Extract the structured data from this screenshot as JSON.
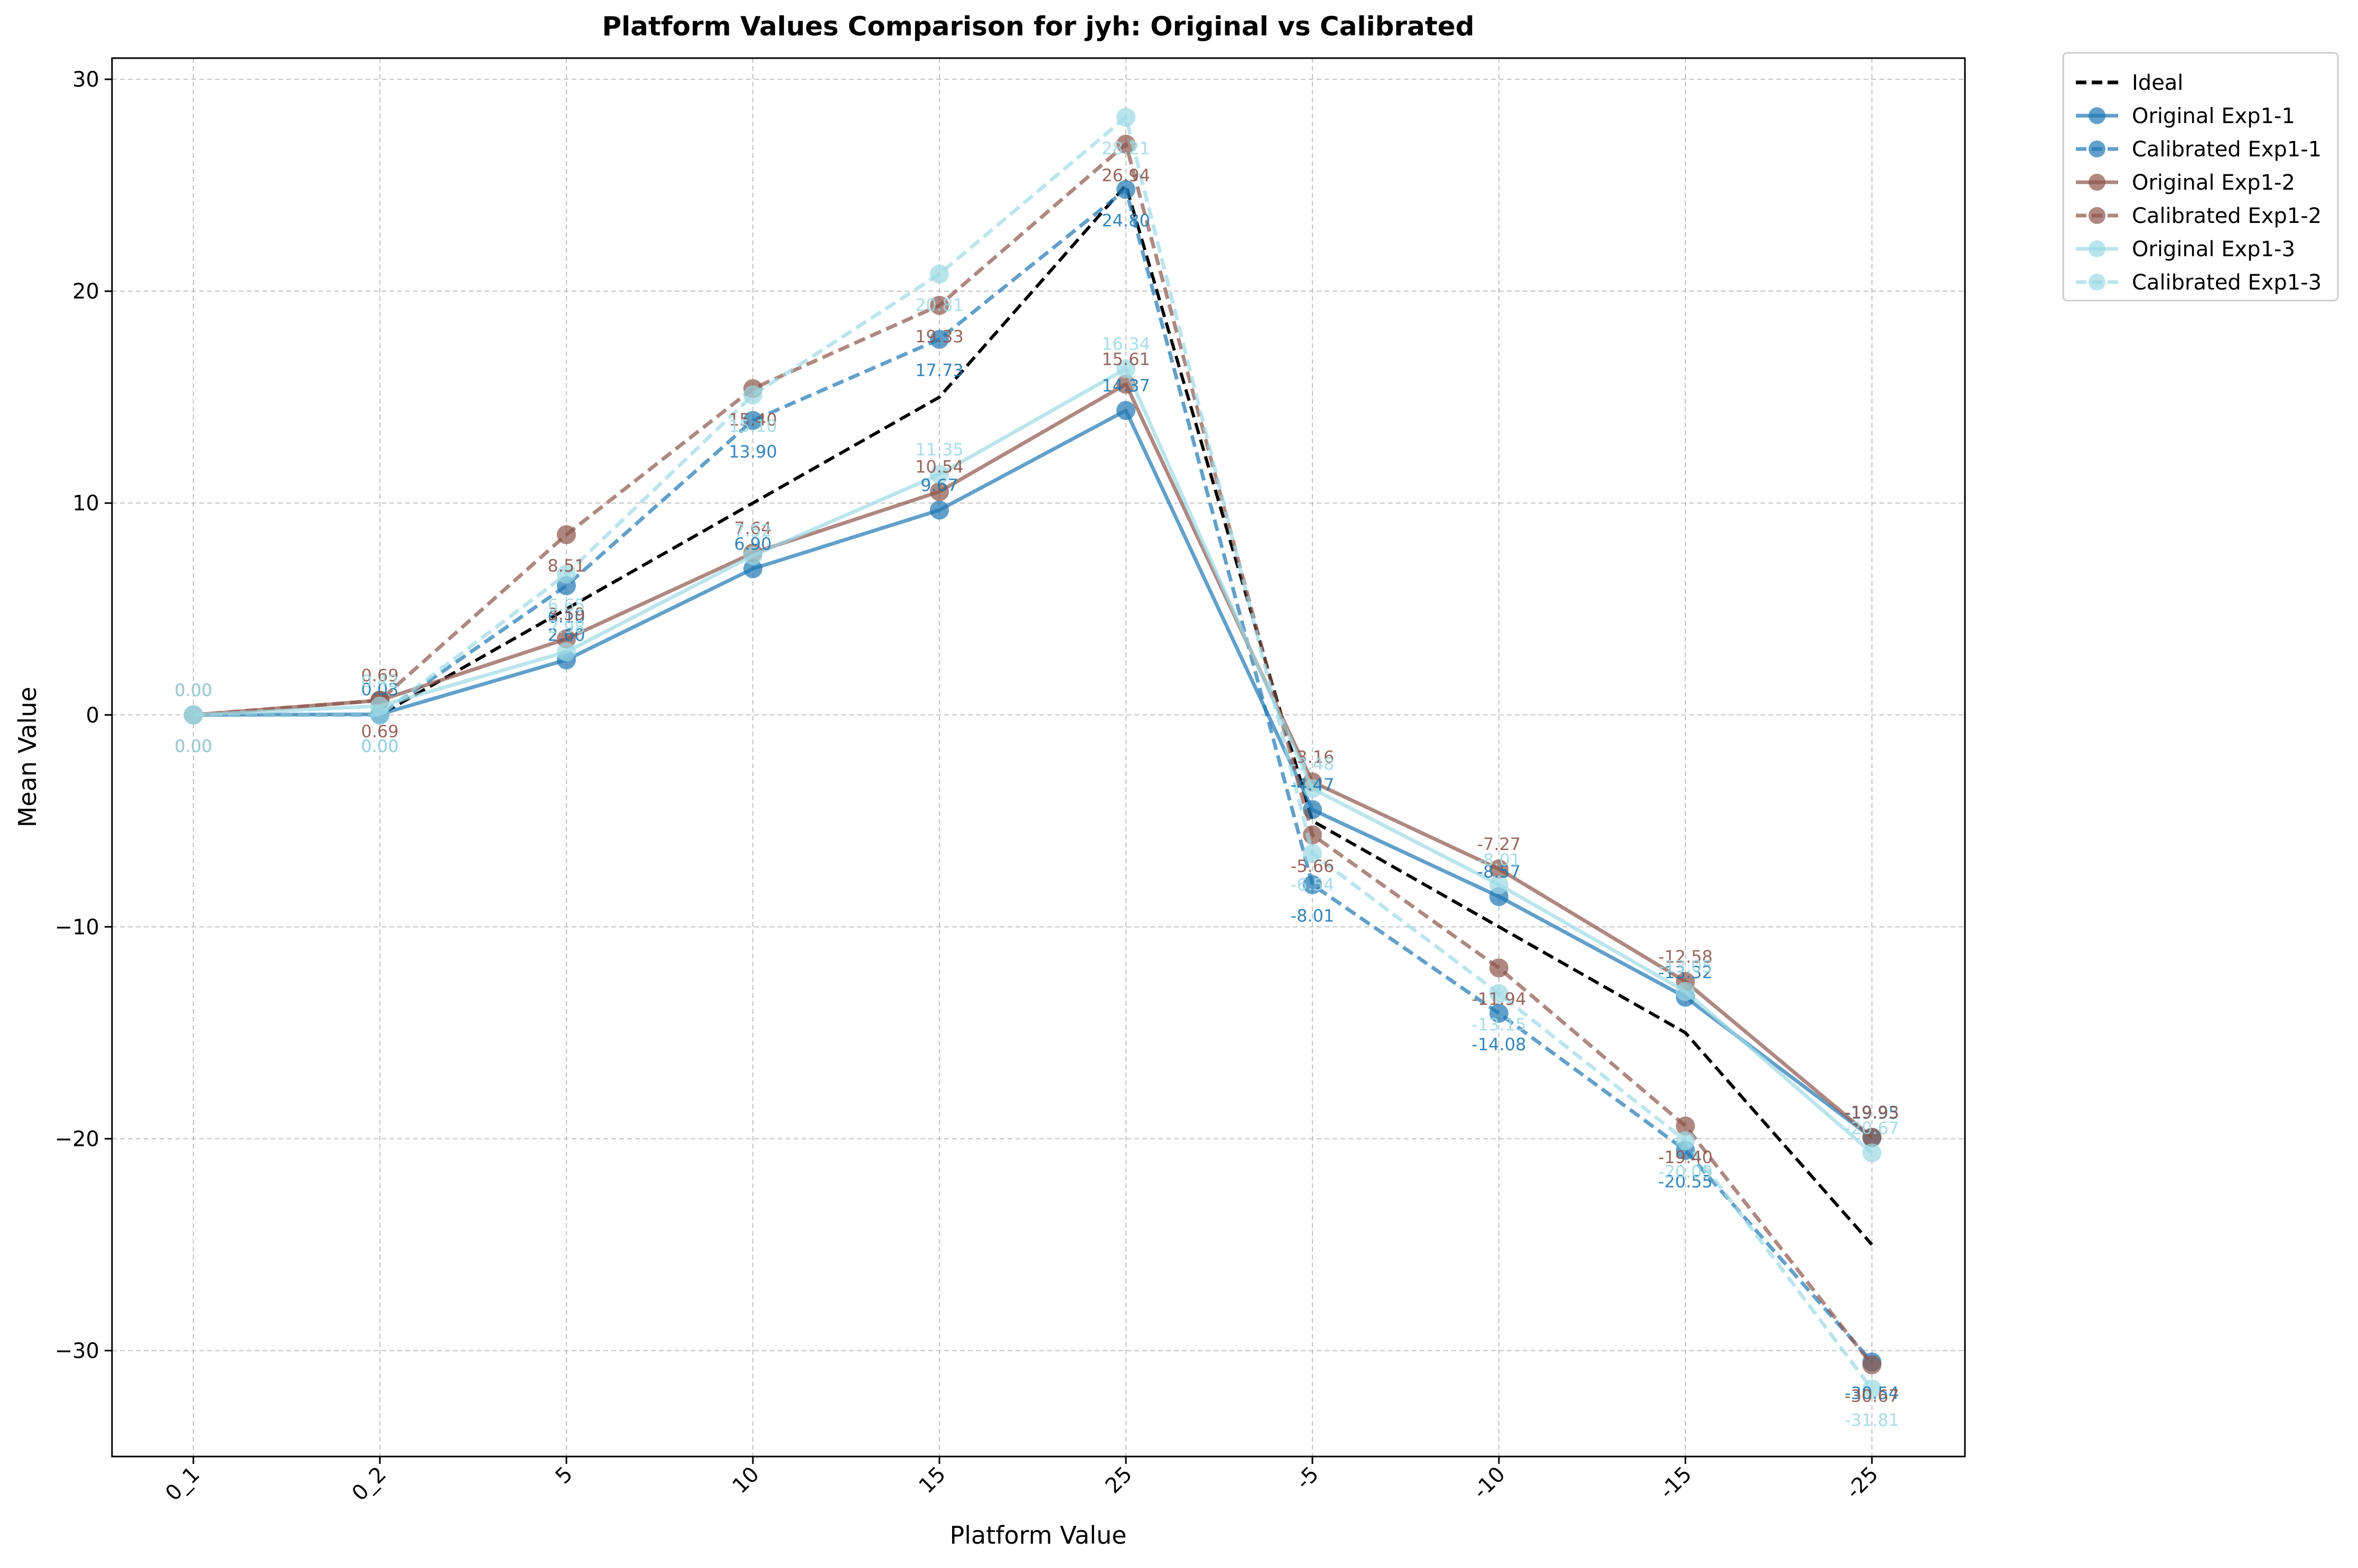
{
  "chart_data": {
    "type": "line",
    "title": "Platform Values Comparison for jyh: Original vs Calibrated",
    "xlabel": "Platform Value",
    "ylabel": "Mean Value",
    "categories": [
      "0_1",
      "0_2",
      "5",
      "10",
      "15",
      "25",
      "-5",
      "-10",
      "-15",
      "-25"
    ],
    "ylim": [
      -35,
      31
    ],
    "yticks": [
      30,
      20,
      10,
      0,
      -10,
      -20,
      -30
    ],
    "ytick_labels": [
      "30",
      "20",
      "10",
      "0",
      "−10",
      "−20",
      "−30"
    ],
    "grid": true,
    "legend_position": "outside-top-right",
    "series": [
      {
        "name": "Ideal",
        "color": "#000000",
        "dashed": true,
        "markers": false,
        "values": [
          0,
          0,
          5,
          10,
          15,
          25,
          -5,
          -10,
          -15,
          -25
        ]
      },
      {
        "name": "Original Exp1-1",
        "color": "#1f77b4",
        "dashed": false,
        "markers": true,
        "values": [
          0.0,
          0.03,
          2.6,
          6.9,
          9.67,
          14.37,
          -4.47,
          -8.57,
          -13.32,
          -19.95
        ],
        "labels": [
          "0.00",
          "0.03",
          "2.60",
          "6.90",
          "9.67",
          "14.37",
          "-4.47",
          "-8.57",
          "-13.32",
          "-19.95"
        ]
      },
      {
        "name": "Calibrated Exp1-1",
        "color": "#1f77b4",
        "dashed": true,
        "markers": true,
        "values": [
          0.0,
          0.0,
          6.1,
          13.9,
          17.73,
          24.8,
          -8.01,
          -14.08,
          -20.55,
          -30.54
        ],
        "labels": [
          "0.00",
          "0.00",
          "6.10",
          "13.90",
          "17.73",
          "24.80",
          "-8.01",
          "-14.08",
          "-20.55",
          "-30.54"
        ]
      },
      {
        "name": "Original Exp1-2",
        "color": "#8c564b",
        "dashed": false,
        "markers": true,
        "values": [
          0.0,
          0.69,
          3.59,
          7.64,
          10.54,
          15.61,
          -3.16,
          -7.27,
          -12.58,
          -19.93
        ],
        "labels": [
          "0.00",
          "0.69",
          "3.59",
          "7.64",
          "10.54",
          "15.61",
          "-3.16",
          "-7.27",
          "-12.58",
          "-19.93"
        ]
      },
      {
        "name": "Calibrated Exp1-2",
        "color": "#8c564b",
        "dashed": true,
        "markers": true,
        "values": [
          0.0,
          0.69,
          8.51,
          15.4,
          19.33,
          26.94,
          -5.66,
          -11.94,
          -19.4,
          -30.67
        ],
        "labels": [
          "0.00",
          "0.69",
          "8.51",
          "15.40",
          "19.33",
          "26.94",
          "-5.66",
          "-11.94",
          "-19.40",
          "-30.67"
        ]
      },
      {
        "name": "Original Exp1-3",
        "color": "#9edae5",
        "dashed": false,
        "markers": true,
        "values": [
          0.0,
          0.42,
          2.98,
          7.52,
          11.35,
          16.34,
          -3.48,
          -8.01,
          -13.05,
          -20.67
        ],
        "labels": [
          "0.00",
          "0.42",
          "2.98",
          "7.52",
          "11.35",
          "16.34",
          "-3.48",
          "-8.01",
          "-13.05",
          "-20.67"
        ]
      },
      {
        "name": "Calibrated Exp1-3",
        "color": "#9edae5",
        "dashed": true,
        "markers": true,
        "values": [
          0.0,
          0.0,
          6.65,
          15.1,
          20.81,
          28.21,
          -6.54,
          -13.15,
          -20.09,
          -31.81
        ],
        "labels": [
          "0.00",
          "0.00",
          "6.65",
          "15.10",
          "20.81",
          "28.21",
          "-6.54",
          "-13.15",
          "-20.09",
          "-31.81"
        ]
      }
    ]
  }
}
